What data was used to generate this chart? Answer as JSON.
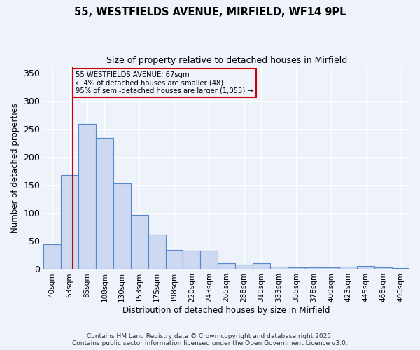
{
  "title_line1": "55, WESTFIELDS AVENUE, MIRFIELD, WF14 9PL",
  "title_line2": "Size of property relative to detached houses in Mirfield",
  "xlabel": "Distribution of detached houses by size in Mirfield",
  "ylabel": "Number of detached properties",
  "bar_labels": [
    "40sqm",
    "63sqm",
    "85sqm",
    "108sqm",
    "130sqm",
    "153sqm",
    "175sqm",
    "198sqm",
    "220sqm",
    "243sqm",
    "265sqm",
    "288sqm",
    "310sqm",
    "333sqm",
    "355sqm",
    "378sqm",
    "400sqm",
    "423sqm",
    "445sqm",
    "468sqm",
    "490sqm"
  ],
  "bar_values": [
    44,
    168,
    258,
    233,
    152,
    97,
    62,
    34,
    33,
    33,
    10,
    8,
    10,
    4,
    3,
    3,
    3,
    4,
    5,
    3,
    2
  ],
  "bar_color": "#ccd9f0",
  "bar_edge_color": "#5588cc",
  "background_color": "#eef2fb",
  "grid_color": "#ffffff",
  "subject_line_color": "#cc0000",
  "annotation_box_text": "55 WESTFIELDS AVENUE: 67sqm\n← 4% of detached houses are smaller (48)\n95% of semi-detached houses are larger (1,055) →",
  "annotation_box_color": "#cc0000",
  "annotation_text_color": "#000000",
  "ylim": [
    0,
    360
  ],
  "yticks": [
    0,
    50,
    100,
    150,
    200,
    250,
    300,
    350
  ],
  "footer_line1": "Contains HM Land Registry data © Crown copyright and database right 2025.",
  "footer_line2": "Contains public sector information licensed under the Open Government Licence v3.0."
}
